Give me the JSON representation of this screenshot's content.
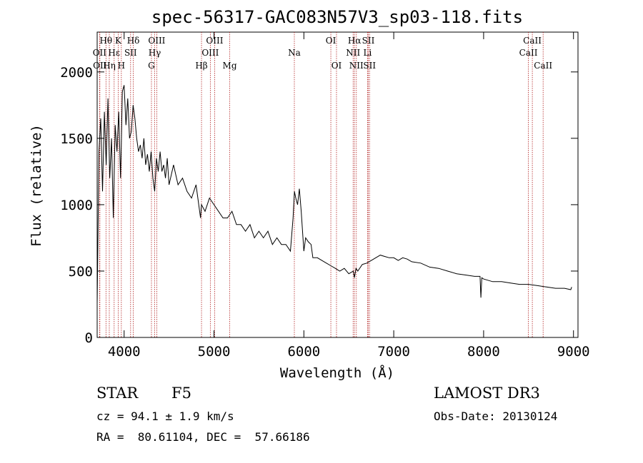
{
  "chart_data": {
    "type": "line",
    "title": "spec-56317-GAC083N57V3_sp03-118.fits",
    "xlabel": "Wavelength (Å)",
    "ylabel": "Flux (relative)",
    "xlim": [
      3700,
      9050
    ],
    "ylim": [
      0,
      2300
    ],
    "xticks": [
      4000,
      5000,
      6000,
      7000,
      8000,
      9000
    ],
    "yticks": [
      0,
      500,
      1000,
      1500,
      2000
    ],
    "colors": {
      "spectrum": "#000000",
      "lines": "#b22222"
    },
    "series": [
      {
        "name": "flux",
        "x": [
          3700,
          3720,
          3740,
          3760,
          3780,
          3800,
          3820,
          3840,
          3860,
          3880,
          3900,
          3920,
          3940,
          3960,
          3970,
          3980,
          4000,
          4020,
          4040,
          4060,
          4080,
          4100,
          4120,
          4140,
          4160,
          4180,
          4200,
          4220,
          4240,
          4260,
          4280,
          4300,
          4320,
          4340,
          4360,
          4380,
          4400,
          4420,
          4440,
          4460,
          4480,
          4500,
          4550,
          4600,
          4650,
          4700,
          4750,
          4800,
          4850,
          4861,
          4900,
          4950,
          5000,
          5050,
          5100,
          5150,
          5200,
          5250,
          5300,
          5350,
          5400,
          5450,
          5500,
          5550,
          5600,
          5650,
          5700,
          5750,
          5800,
          5850,
          5880,
          5895,
          5910,
          5930,
          5950,
          5970,
          6000,
          6020,
          6050,
          6080,
          6100,
          6150,
          6200,
          6250,
          6300,
          6350,
          6400,
          6450,
          6500,
          6550,
          6563,
          6580,
          6600,
          6650,
          6700,
          6750,
          6800,
          6850,
          6900,
          6950,
          7000,
          7050,
          7100,
          7150,
          7200,
          7300,
          7400,
          7500,
          7600,
          7700,
          7800,
          7900,
          7960,
          7970,
          7980,
          8000,
          8100,
          8200,
          8300,
          8400,
          8500,
          8600,
          8700,
          8800,
          8900,
          8970,
          8980
        ],
        "y": [
          250,
          1400,
          1650,
          1100,
          1700,
          1300,
          1800,
          1200,
          1500,
          900,
          1600,
          1400,
          1700,
          1200,
          1500,
          1850,
          1900,
          1600,
          1800,
          1500,
          1550,
          1750,
          1650,
          1500,
          1400,
          1450,
          1350,
          1500,
          1300,
          1380,
          1250,
          1400,
          1200,
          1100,
          1350,
          1250,
          1400,
          1250,
          1300,
          1200,
          1350,
          1150,
          1300,
          1150,
          1200,
          1100,
          1050,
          1150,
          900,
          1000,
          950,
          1050,
          1000,
          950,
          900,
          900,
          950,
          850,
          850,
          800,
          850,
          750,
          800,
          750,
          800,
          700,
          750,
          700,
          700,
          650,
          900,
          1100,
          1050,
          1000,
          1120,
          950,
          650,
          750,
          720,
          700,
          600,
          600,
          580,
          560,
          540,
          520,
          500,
          520,
          480,
          500,
          450,
          520,
          500,
          550,
          560,
          580,
          600,
          620,
          610,
          600,
          600,
          580,
          600,
          590,
          570,
          560,
          530,
          520,
          500,
          480,
          470,
          460,
          460,
          300,
          450,
          440,
          420,
          420,
          410,
          400,
          400,
          390,
          380,
          370,
          370,
          360,
          380
        ]
      }
    ],
    "spectral_lines": [
      {
        "label": "Hθ",
        "wavelength": 3798,
        "row": 0
      },
      {
        "label": "OII",
        "wavelength": 3727,
        "row": 1
      },
      {
        "label": "OII",
        "wavelength": 3730,
        "row": 2
      },
      {
        "label": "Hε",
        "wavelength": 3889,
        "row": 1
      },
      {
        "label": "Hη",
        "wavelength": 3835,
        "row": 2
      },
      {
        "label": "K",
        "wavelength": 3934,
        "row": 0
      },
      {
        "label": "H",
        "wavelength": 3969,
        "row": 2
      },
      {
        "label": "Hδ",
        "wavelength": 4102,
        "row": 0
      },
      {
        "label": "SII",
        "wavelength": 4072,
        "row": 1
      },
      {
        "label": "OIII",
        "wavelength": 4363,
        "row": 0
      },
      {
        "label": "Hγ",
        "wavelength": 4340,
        "row": 1
      },
      {
        "label": "G",
        "wavelength": 4304,
        "row": 2
      },
      {
        "label": "Hβ",
        "wavelength": 4861,
        "row": 2
      },
      {
        "label": "OIII",
        "wavelength": 5007,
        "row": 0
      },
      {
        "label": "OIII",
        "wavelength": 4959,
        "row": 1
      },
      {
        "label": "Mg",
        "wavelength": 5175,
        "row": 2
      },
      {
        "label": "Na",
        "wavelength": 5894,
        "row": 1
      },
      {
        "label": "OI",
        "wavelength": 6300,
        "row": 0
      },
      {
        "label": "OI",
        "wavelength": 6363,
        "row": 2
      },
      {
        "label": "Hα",
        "wavelength": 6563,
        "row": 0
      },
      {
        "label": "SII",
        "wavelength": 6717,
        "row": 0
      },
      {
        "label": "NII",
        "wavelength": 6548,
        "row": 1
      },
      {
        "label": "Li",
        "wavelength": 6708,
        "row": 1
      },
      {
        "label": "NII",
        "wavelength": 6584,
        "row": 2
      },
      {
        "label": "SII",
        "wavelength": 6731,
        "row": 2
      },
      {
        "label": "CaII",
        "wavelength": 8542,
        "row": 0
      },
      {
        "label": "CaII",
        "wavelength": 8498,
        "row": 1
      },
      {
        "label": "CaII",
        "wavelength": 8662,
        "row": 2
      }
    ]
  },
  "info": {
    "class": "STAR",
    "subclass": "F5",
    "survey": "LAMOST DR3",
    "redshift": "cz = 94.1 ± 1.9 km/s",
    "obs_date": "Obs-Date: 20130124",
    "coords": "RA =  80.61104, DEC =  57.66186"
  }
}
